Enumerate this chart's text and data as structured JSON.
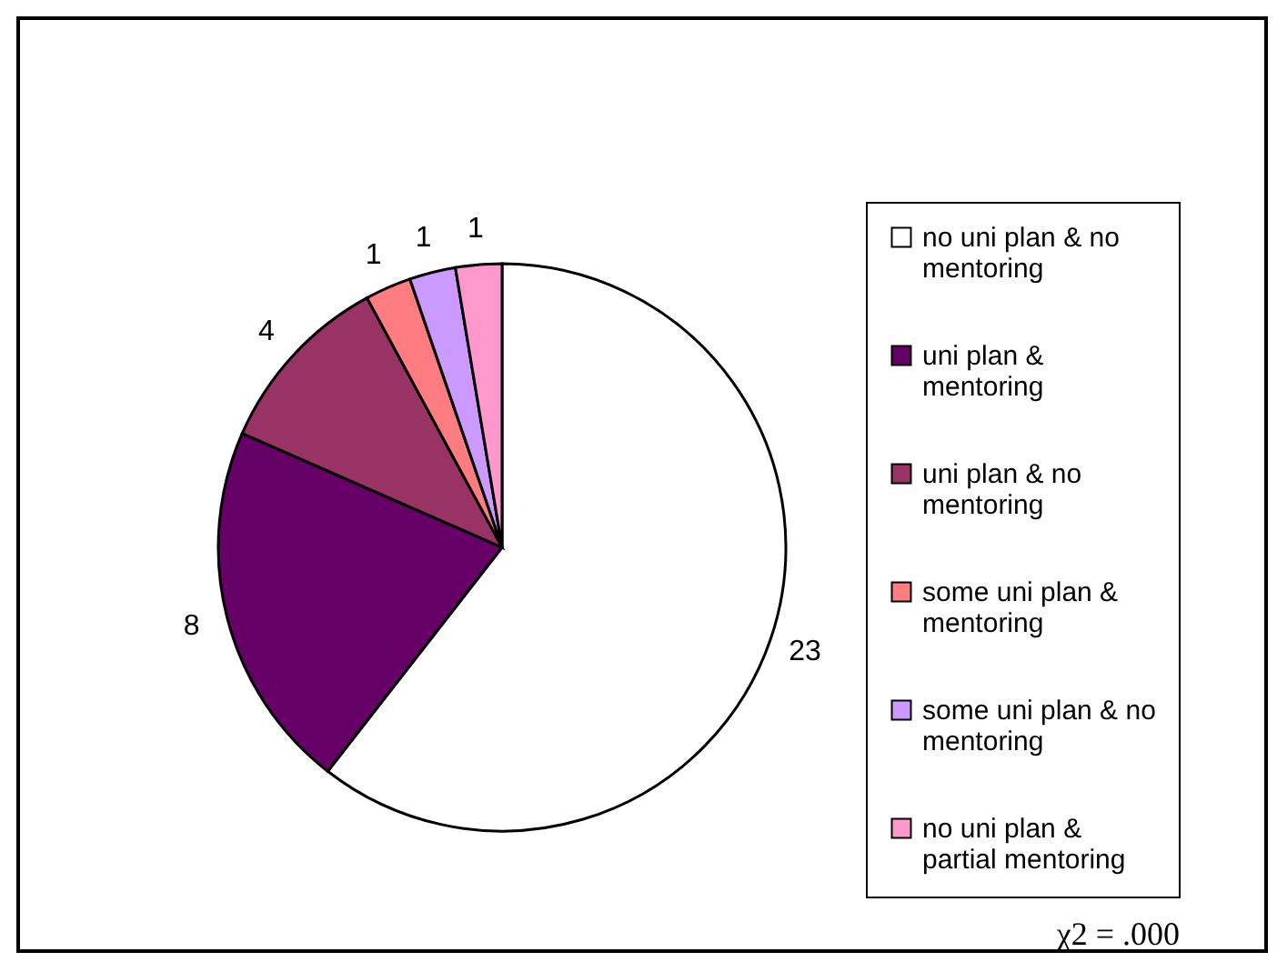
{
  "chart_data": {
    "type": "pie",
    "categories": [
      "no uni plan & no mentoring",
      "uni plan & mentoring",
      "uni plan & no mentoring",
      "some uni plan & mentoring",
      "some uni plan & no mentoring",
      "no uni plan & partial mentoring"
    ],
    "values": [
      23,
      8,
      4,
      1,
      1,
      1
    ],
    "colors": [
      "#ffffff",
      "#660066",
      "#993366",
      "#ff7c80",
      "#cc99ff",
      "#ff99cc"
    ],
    "data_labels": true,
    "legend": "right",
    "annotations": [
      "χ2 = .000"
    ]
  }
}
